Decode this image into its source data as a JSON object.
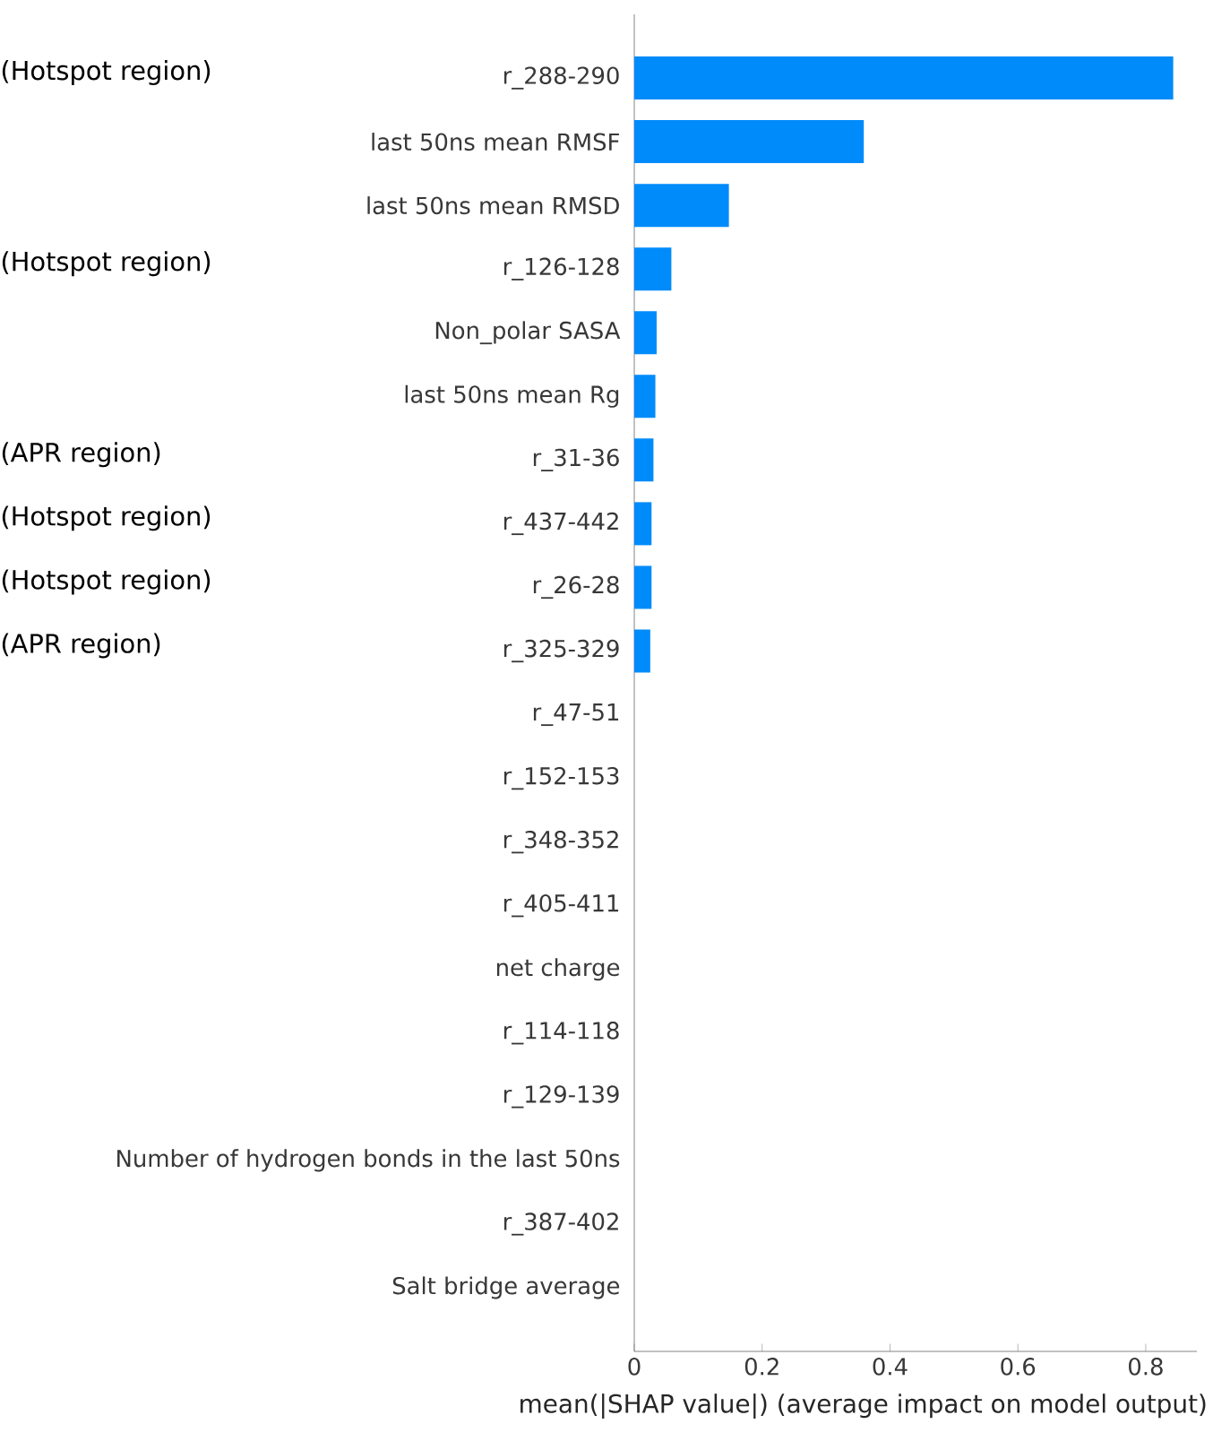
{
  "chart_data": {
    "type": "bar",
    "orientation": "horizontal",
    "xlabel": "mean(|SHAP value|) (average impact on model output)",
    "categories": [
      "r_288-290",
      "last 50ns mean RMSF",
      "last 50ns mean RMSD",
      "r_126-128",
      "Non_polar SASA",
      "last 50ns mean Rg",
      "r_31-36",
      "r_437-442",
      "r_26-28",
      "r_325-329",
      "r_47-51",
      "r_152-153",
      "r_348-352",
      "r_405-411",
      "net charge",
      "r_114-118",
      "r_129-139",
      "Number of hydrogen bonds in the last 50ns",
      "r_387-402",
      "Salt bridge average"
    ],
    "values": [
      0.843,
      0.359,
      0.148,
      0.058,
      0.035,
      0.033,
      0.03,
      0.027,
      0.027,
      0.025,
      0,
      0,
      0,
      0,
      0,
      0,
      0,
      0,
      0,
      0
    ],
    "color": "#008bfb",
    "xlim": [
      0,
      0.88
    ],
    "xticks": [
      0,
      0.2,
      0.4,
      0.6,
      0.8
    ],
    "annotations": [
      "(Hotspot region)",
      "(Hotspot region)",
      "(APR region)",
      "(Hotspot region)",
      "(Hotspot region)",
      "(APR region)"
    ]
  }
}
